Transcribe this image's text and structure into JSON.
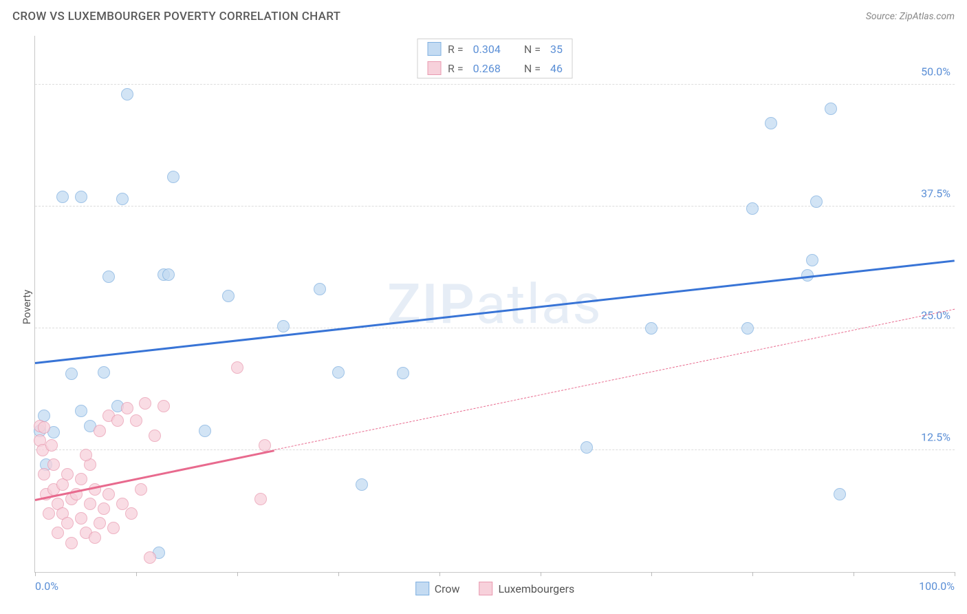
{
  "title": "CROW VS LUXEMBOURGER POVERTY CORRELATION CHART",
  "source": "Source: ZipAtlas.com",
  "ylabel": "Poverty",
  "watermark_bold": "ZIP",
  "watermark_rest": "atlas",
  "chart": {
    "type": "scatter",
    "background_color": "#ffffff",
    "grid_color": "#dcdcdc",
    "axis_color": "#c8c8c8",
    "label_color": "#5b8fd6",
    "text_color": "#555555",
    "xlim": [
      0,
      100
    ],
    "ylim": [
      0,
      55
    ],
    "yticks": [
      12.5,
      25.0,
      37.5,
      50.0
    ],
    "ytick_labels": [
      "12.5%",
      "25.0%",
      "37.5%",
      "50.0%"
    ],
    "xaxis_labels": {
      "left": "0.0%",
      "right": "100.0%"
    },
    "xtick_positions": [
      0,
      11,
      22,
      33,
      44,
      55,
      67,
      78,
      89,
      100
    ],
    "marker_radius": 9,
    "marker_stroke_width": 1.3,
    "trend_width": 3,
    "series": [
      {
        "id": "crow",
        "label": "Crow",
        "R": "0.304",
        "N": "35",
        "fill": "#c4dbf2",
        "stroke": "#7fb0e0",
        "trend_color": "#3874d6",
        "trend": {
          "x1": 0,
          "y1": 21.5,
          "x2": 100,
          "y2": 32.0,
          "solid_until": 100
        },
        "points": [
          [
            3.0,
            38.5
          ],
          [
            5.0,
            38.5
          ],
          [
            9.5,
            38.3
          ],
          [
            10.0,
            49.0
          ],
          [
            14.0,
            30.5
          ],
          [
            14.5,
            30.5
          ],
          [
            15.0,
            40.5
          ],
          [
            18.5,
            14.5
          ],
          [
            8.0,
            30.3
          ],
          [
            21.0,
            28.3
          ],
          [
            27.0,
            25.2
          ],
          [
            33.0,
            20.5
          ],
          [
            40.0,
            20.4
          ],
          [
            35.5,
            9.0
          ],
          [
            60.0,
            12.8
          ],
          [
            67.0,
            25.0
          ],
          [
            77.5,
            25.0
          ],
          [
            78.0,
            37.3
          ],
          [
            84.0,
            30.4
          ],
          [
            84.5,
            32.0
          ],
          [
            85.0,
            38.0
          ],
          [
            80.0,
            46.0
          ],
          [
            86.5,
            47.5
          ],
          [
            87.5,
            8.0
          ],
          [
            2.0,
            14.3
          ],
          [
            5.0,
            16.5
          ],
          [
            9.0,
            17.0
          ],
          [
            6.0,
            15.0
          ],
          [
            1.2,
            11.0
          ],
          [
            1.0,
            16.0
          ],
          [
            0.5,
            14.5
          ],
          [
            7.5,
            20.5
          ],
          [
            4.0,
            20.3
          ],
          [
            13.5,
            2.0
          ],
          [
            31.0,
            29.0
          ]
        ]
      },
      {
        "id": "lux",
        "label": "Luxembourgers",
        "R": "0.268",
        "N": "46",
        "fill": "#f7d1db",
        "stroke": "#e99ab0",
        "trend_color": "#e86a8e",
        "trend": {
          "x1": 0,
          "y1": 7.5,
          "x2": 100,
          "y2": 27.0,
          "solid_until": 26
        },
        "points": [
          [
            0.5,
            13.5
          ],
          [
            0.8,
            12.5
          ],
          [
            1.0,
            10.0
          ],
          [
            1.2,
            8.0
          ],
          [
            1.5,
            6.0
          ],
          [
            2.0,
            8.5
          ],
          [
            2.0,
            11.0
          ],
          [
            2.5,
            7.0
          ],
          [
            2.5,
            4.0
          ],
          [
            3.0,
            9.0
          ],
          [
            3.0,
            6.0
          ],
          [
            3.5,
            5.0
          ],
          [
            3.5,
            10.0
          ],
          [
            4.0,
            7.5
          ],
          [
            4.0,
            3.0
          ],
          [
            4.5,
            8.0
          ],
          [
            5.0,
            5.5
          ],
          [
            5.0,
            9.5
          ],
          [
            5.5,
            4.0
          ],
          [
            6.0,
            7.0
          ],
          [
            6.0,
            11.0
          ],
          [
            6.5,
            3.5
          ],
          [
            6.5,
            8.5
          ],
          [
            7.0,
            5.0
          ],
          [
            7.0,
            14.5
          ],
          [
            7.5,
            6.5
          ],
          [
            8.0,
            8.0
          ],
          [
            8.0,
            16.0
          ],
          [
            8.5,
            4.5
          ],
          [
            9.0,
            15.5
          ],
          [
            9.5,
            7.0
          ],
          [
            10.0,
            16.8
          ],
          [
            10.5,
            6.0
          ],
          [
            11.0,
            15.5
          ],
          [
            12.0,
            17.3
          ],
          [
            12.5,
            1.5
          ],
          [
            13.0,
            14.0
          ],
          [
            14.0,
            17.0
          ],
          [
            22.0,
            21.0
          ],
          [
            25.0,
            13.0
          ],
          [
            24.5,
            7.5
          ],
          [
            0.5,
            15.0
          ],
          [
            1.0,
            14.8
          ],
          [
            1.8,
            13.0
          ],
          [
            5.5,
            12.0
          ],
          [
            11.5,
            8.5
          ]
        ]
      }
    ]
  },
  "legend_top": [
    {
      "swatch_fill": "#c4dbf2",
      "swatch_stroke": "#7fb0e0",
      "r": "0.304",
      "n": "35"
    },
    {
      "swatch_fill": "#f7d1db",
      "swatch_stroke": "#e99ab0",
      "r": "0.268",
      "n": "46"
    }
  ]
}
